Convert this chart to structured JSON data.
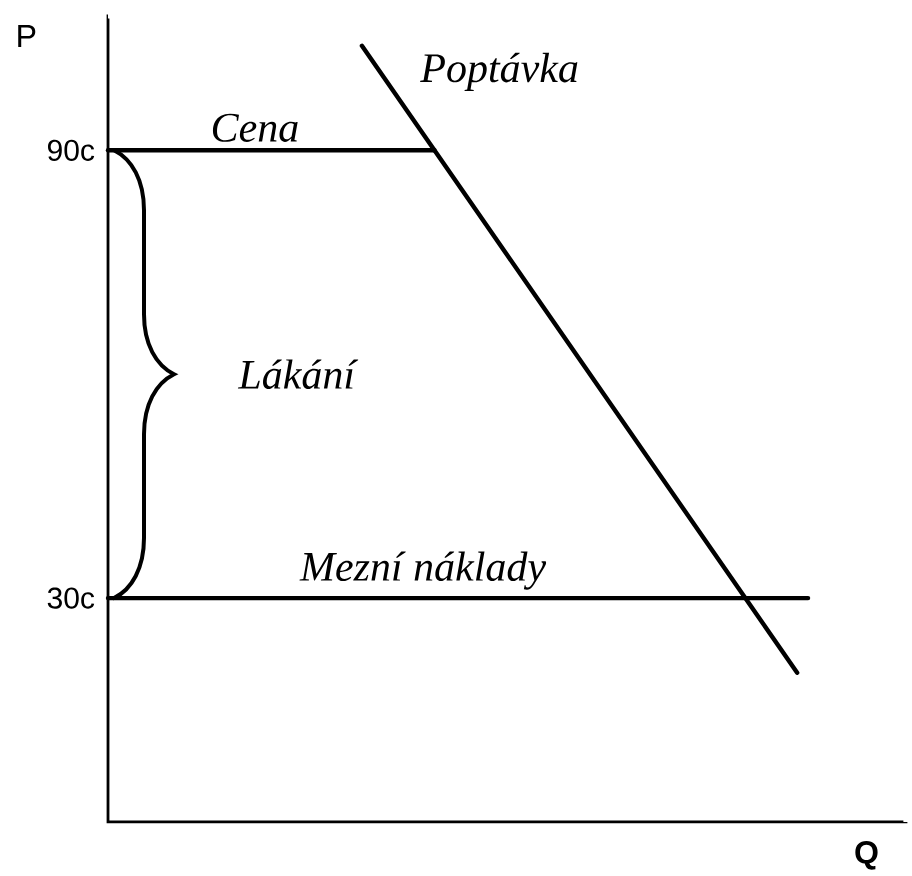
{
  "chart_data": {
    "type": "line",
    "xlabel": "Q",
    "ylabel": "P",
    "categories": [
      null,
      null,
      null,
      null,
      null,
      null,
      null,
      null,
      null,
      null,
      null,
      null,
      null
    ],
    "series": [
      {
        "name": "Poptávka",
        "color": "#000000",
        "values": [
          104,
          97,
          90,
          83,
          76,
          69,
          62,
          55,
          48,
          41,
          34,
          27,
          20
        ]
      }
    ],
    "ref_lines": [
      {
        "axis": "y",
        "value": 90,
        "label": "Cena",
        "color": "#000000"
      },
      {
        "axis": "y",
        "value": 30,
        "label": "Mezní náklady",
        "color": "#000000"
      }
    ],
    "ylim": [
      0,
      108
    ],
    "yticks": [
      {
        "value": 30,
        "label": "30c"
      },
      {
        "value": 90,
        "label": "90c"
      }
    ],
    "annotations": [
      "Lákání"
    ],
    "tick_labels": "y",
    "marker": "none",
    "line_style": "solid"
  }
}
